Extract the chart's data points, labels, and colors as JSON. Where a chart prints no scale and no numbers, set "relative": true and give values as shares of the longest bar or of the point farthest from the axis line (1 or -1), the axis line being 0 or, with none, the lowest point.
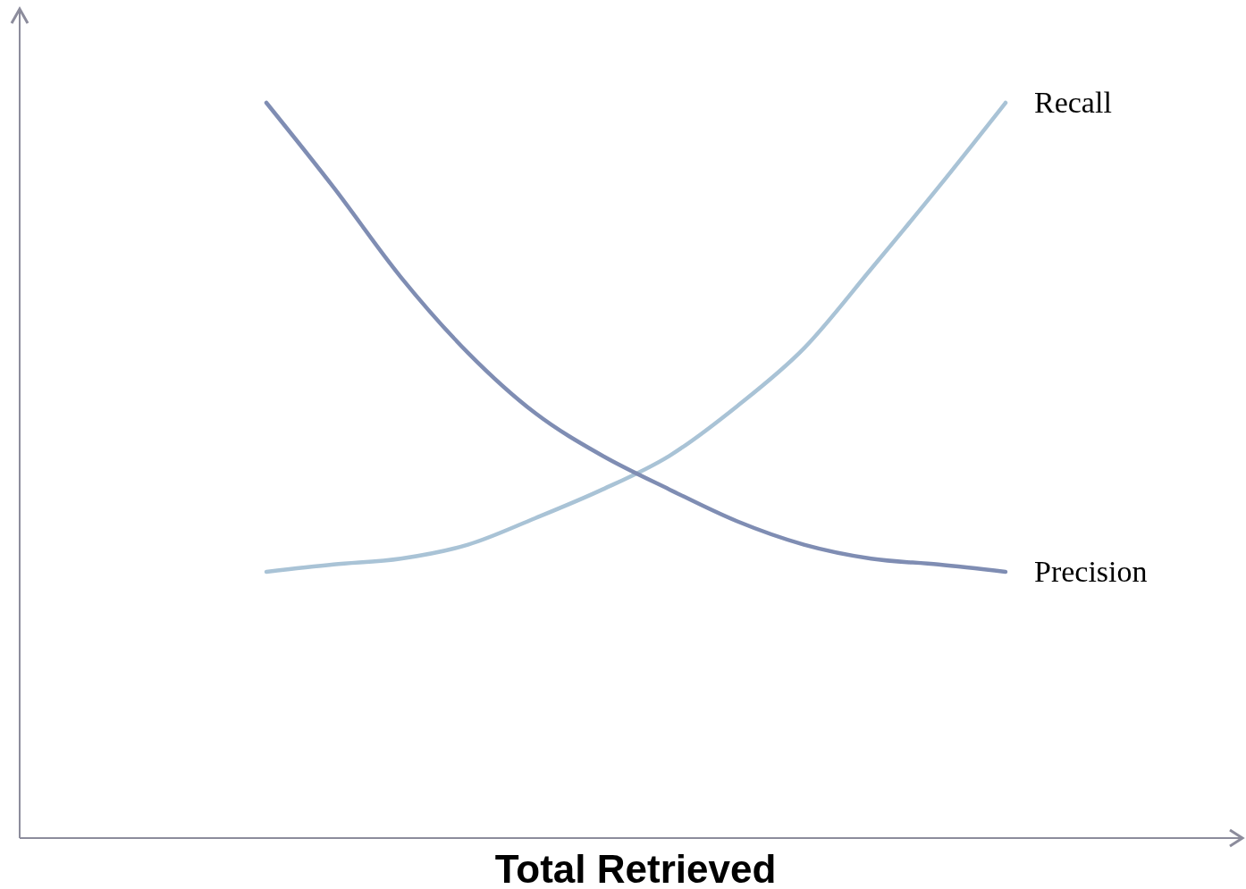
{
  "chart_data": {
    "type": "line",
    "relative": true,
    "xlabel": "Total Retrieved",
    "tick_labels": false,
    "grid": false,
    "legend": false,
    "marker": "none",
    "line_style": "solid",
    "categories": [
      null,
      null,
      null,
      null,
      null,
      null,
      null,
      null,
      null,
      null,
      null,
      null
    ],
    "series": [
      {
        "name": "Recall",
        "color": "#a9c3d6",
        "values": [
          0.362,
          0.372,
          0.38,
          0.399,
          0.435,
          0.474,
          0.52,
          0.587,
          0.666,
          0.774,
          0.885,
          1
        ]
      },
      {
        "name": "Precision",
        "color": "#7f8db3",
        "values": [
          1,
          0.885,
          0.763,
          0.66,
          0.578,
          0.52,
          0.474,
          0.431,
          0.399,
          0.38,
          0.372,
          0.362
        ]
      }
    ]
  }
}
